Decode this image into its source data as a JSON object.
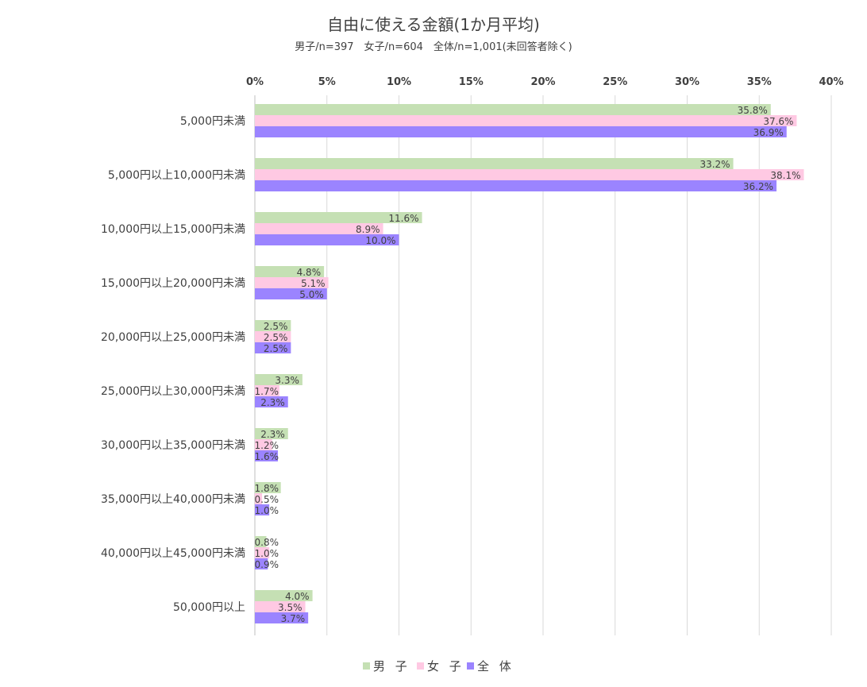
{
  "chart_data": {
    "type": "bar",
    "orientation": "horizontal",
    "title": "自由に使える金額(1か月平均)",
    "subtitle": "男子/n=397　女子/n=604　全体/n=1,001(未回答者除く)",
    "categories": [
      "5,000円未満",
      "5,000円以上10,000円未満",
      "10,000円以上15,000円未満",
      "15,000円以上20,000円未満",
      "20,000円以上25,000円未満",
      "25,000円以上30,000円未満",
      "30,000円以上35,000円未満",
      "35,000円以上40,000円未満",
      "40,000円以上45,000円未満",
      "50,000円以上"
    ],
    "series": [
      {
        "name": "男 子",
        "color": "#c5e0b4",
        "values": [
          35.8,
          33.2,
          11.6,
          4.8,
          2.5,
          3.3,
          2.3,
          1.8,
          0.8,
          4.0
        ],
        "labels": [
          "35.8%",
          "33.2%",
          "11.6%",
          "4.8%",
          "2.5%",
          "3.3%",
          "2.3%",
          "1.8%",
          "0.8%",
          "4.0%"
        ]
      },
      {
        "name": "女 子",
        "color": "#ffc9e3",
        "values": [
          37.6,
          38.1,
          8.9,
          5.1,
          2.5,
          1.7,
          1.2,
          0.5,
          1.0,
          3.5
        ],
        "labels": [
          "37.6%",
          "38.1%",
          "8.9%",
          "5.1%",
          "2.5%",
          "1.7%",
          "1.2%",
          "0.5%",
          "1.0%",
          "3.5%"
        ]
      },
      {
        "name": "全 体",
        "color": "#9b84ff",
        "values": [
          36.9,
          36.2,
          10.0,
          5.0,
          2.5,
          2.3,
          1.6,
          1.0,
          0.9,
          3.7
        ],
        "labels": [
          "36.9%",
          "36.2%",
          "10.0%",
          "5.0%",
          "2.5%",
          "2.3%",
          "1.6%",
          "1.0%",
          "0.9%",
          "3.7%"
        ]
      }
    ],
    "xlim": [
      0,
      40
    ],
    "ticks": [
      "0%",
      "5%",
      "10%",
      "15%",
      "20%",
      "25%",
      "30%",
      "35%",
      "40%"
    ],
    "tick_values": [
      0,
      5,
      10,
      15,
      20,
      25,
      30,
      35,
      40
    ],
    "grid": true,
    "legend_position": "bottom"
  }
}
